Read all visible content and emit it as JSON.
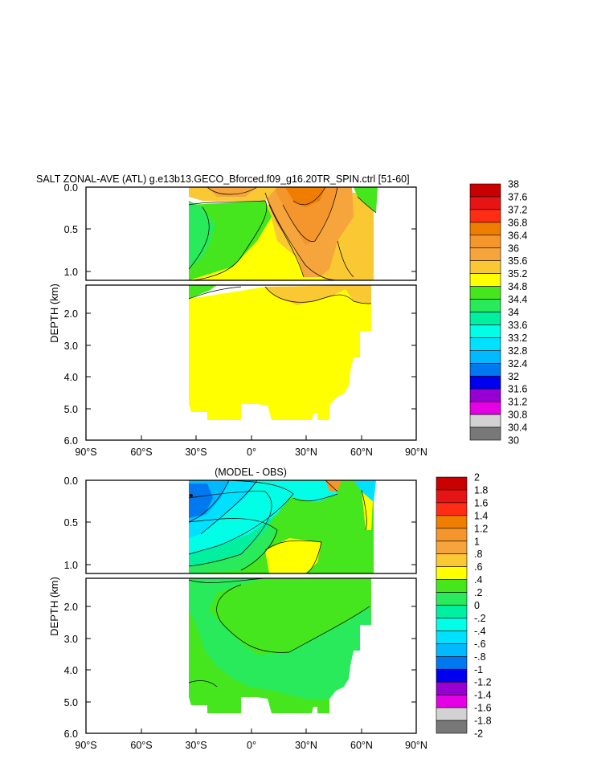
{
  "chart_data": [
    {
      "type": "heatmap",
      "title": "SALT ZONAL-AVE (ATL) g.e13b13.GECO_Bforced.f09_g16.20TR_SPIN.ctrl [51-60]",
      "ylabel": "DEPTH (km)",
      "xlabel": "",
      "x_ticks": [
        "90°S",
        "60°S",
        "30°S",
        "0°",
        "30°N",
        "60°N",
        "90°N"
      ],
      "xlim": [
        -90,
        90
      ],
      "upper_panel_y_ticks": [
        "0.0",
        "0.5",
        "1.0"
      ],
      "upper_panel_ylim": [
        0,
        1.1
      ],
      "lower_panel_y_ticks": [
        "2.0",
        "3.0",
        "4.0",
        "5.0",
        "6.0"
      ],
      "lower_panel_ylim": [
        1.1,
        6.0
      ],
      "colorbar_levels": [
        "38",
        "37.6",
        "37.2",
        "36.8",
        "36.4",
        "36",
        "35.6",
        "35.2",
        "34.8",
        "34.4",
        "34",
        "33.6",
        "33.2",
        "32.8",
        "32.4",
        "32",
        "31.6",
        "31.2",
        "30.8",
        "30.4",
        "30"
      ],
      "colorbar_colors": [
        "#c80000",
        "#e61414",
        "#ff2d14",
        "#ef7d00",
        "#f5962d",
        "#f5a53c",
        "#fac832",
        "#ffff00",
        "#46e61e",
        "#28ea5a",
        "#00f0a0",
        "#00ffe6",
        "#00e1ff",
        "#00b9ff",
        "#0078f0",
        "#0000f0",
        "#9600d2",
        "#e600e6",
        "#d2d2d2",
        "#787878"
      ],
      "regions": [
        {
          "x": [
            -33,
            67
          ],
          "depth": [
            0,
            5.35
          ],
          "value": 35.0
        },
        {
          "x": [
            -33,
            5
          ],
          "depth": [
            0.05,
            1.05
          ],
          "value": 34.6
        },
        {
          "x": [
            20,
            45
          ],
          "depth": [
            0,
            0.9
          ],
          "value": 36.2
        }
      ]
    },
    {
      "type": "heatmap",
      "title": "(MODEL - OBS)",
      "ylabel": "DEPTH (km)",
      "xlabel": "",
      "x_ticks": [
        "90°S",
        "60°S",
        "30°S",
        "0°",
        "30°N",
        "60°N",
        "90°N"
      ],
      "xlim": [
        -90,
        90
      ],
      "upper_panel_y_ticks": [
        "0.0",
        "0.5",
        "1.0"
      ],
      "upper_panel_ylim": [
        0,
        1.1
      ],
      "lower_panel_y_ticks": [
        "2.0",
        "3.0",
        "4.0",
        "5.0",
        "6.0"
      ],
      "lower_panel_ylim": [
        1.1,
        6.0
      ],
      "colorbar_levels": [
        "2",
        "1.8",
        "1.6",
        "1.4",
        "1.2",
        "1",
        ".8",
        ".6",
        ".4",
        ".2",
        "0",
        "-.2",
        "-.4",
        "-.6",
        "-.8",
        "-1",
        "-1.2",
        "-1.4",
        "-1.6",
        "-1.8",
        "-2"
      ],
      "colorbar_colors": [
        "#c80000",
        "#e61414",
        "#ff2d14",
        "#ef7d00",
        "#f5962d",
        "#f5a53c",
        "#fac832",
        "#ffff00",
        "#46e61e",
        "#28ea5a",
        "#00f0a0",
        "#00ffe6",
        "#00e1ff",
        "#00b9ff",
        "#0078f0",
        "#0000f0",
        "#9600d2",
        "#e600e6",
        "#d2d2d2",
        "#787878"
      ],
      "regions": [
        {
          "x": [
            -33,
            67
          ],
          "depth": [
            0,
            5.35
          ],
          "value": 0.2
        },
        {
          "x": [
            -33,
            0
          ],
          "depth": [
            0,
            0.9
          ],
          "value": -0.5
        },
        {
          "x": [
            20,
            40
          ],
          "depth": [
            0.75,
            1.05
          ],
          "value": 0.5
        }
      ]
    }
  ]
}
